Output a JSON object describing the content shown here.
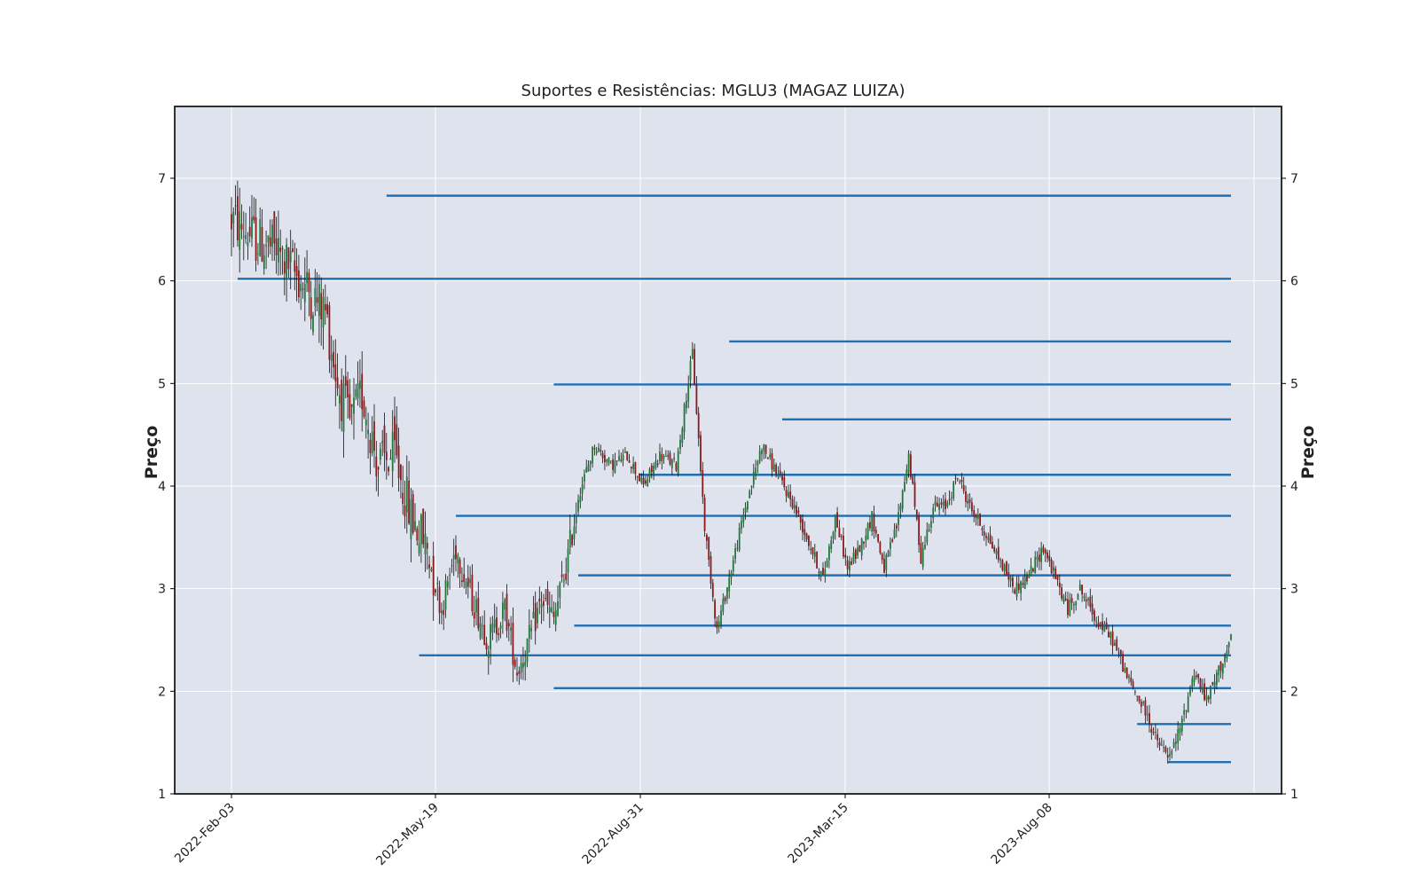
{
  "chart_data": {
    "type": "candlestick",
    "title": "Suportes e Resistências: MGLU3 (MAGAZ LUIZA)",
    "ylabel": "Preço",
    "ylabel_right": "Preço",
    "ylim": [
      1,
      7.7
    ],
    "yticks": [
      1,
      2,
      3,
      4,
      5,
      6,
      7
    ],
    "x_tick_labels": [
      "2022-Feb-03",
      "2022-May-19",
      "2022-Aug-31",
      "2023-Mar-15",
      "2023-Aug-08"
    ],
    "grid": true,
    "colors": {
      "background": "#dee3ee",
      "up": "#1f7a3a",
      "down": "#8b1a1a",
      "wick": "#111111",
      "level": "#1f6fb2",
      "grid": "#ffffff",
      "frame": "#000000"
    },
    "price_path_anchors": [
      {
        "i": 0,
        "p": 6.6
      },
      {
        "i": 12,
        "p": 6.4
      },
      {
        "i": 22,
        "p": 6.3
      },
      {
        "i": 30,
        "p": 6.1
      },
      {
        "i": 38,
        "p": 5.9
      },
      {
        "i": 46,
        "p": 5.7
      },
      {
        "i": 52,
        "p": 5.0
      },
      {
        "i": 58,
        "p": 4.6
      },
      {
        "i": 64,
        "p": 4.9
      },
      {
        "i": 72,
        "p": 4.2
      },
      {
        "i": 80,
        "p": 4.3
      },
      {
        "i": 88,
        "p": 3.7
      },
      {
        "i": 96,
        "p": 3.4
      },
      {
        "i": 103,
        "p": 2.8
      },
      {
        "i": 110,
        "p": 3.4
      },
      {
        "i": 118,
        "p": 2.9
      },
      {
        "i": 126,
        "p": 2.5
      },
      {
        "i": 134,
        "p": 2.8
      },
      {
        "i": 140,
        "p": 2.2
      },
      {
        "i": 146,
        "p": 2.5
      },
      {
        "i": 152,
        "p": 2.9
      },
      {
        "i": 158,
        "p": 2.7
      },
      {
        "i": 164,
        "p": 3.2
      },
      {
        "i": 170,
        "p": 3.9
      },
      {
        "i": 178,
        "p": 4.4
      },
      {
        "i": 186,
        "p": 4.2
      },
      {
        "i": 194,
        "p": 4.3
      },
      {
        "i": 202,
        "p": 4.0
      },
      {
        "i": 210,
        "p": 4.3
      },
      {
        "i": 218,
        "p": 4.2
      },
      {
        "i": 226,
        "p": 5.3
      },
      {
        "i": 232,
        "p": 3.6
      },
      {
        "i": 238,
        "p": 2.6
      },
      {
        "i": 244,
        "p": 3.1
      },
      {
        "i": 252,
        "p": 3.8
      },
      {
        "i": 260,
        "p": 4.4
      },
      {
        "i": 268,
        "p": 4.1
      },
      {
        "i": 276,
        "p": 3.8
      },
      {
        "i": 284,
        "p": 3.4
      },
      {
        "i": 290,
        "p": 3.1
      },
      {
        "i": 296,
        "p": 3.7
      },
      {
        "i": 302,
        "p": 3.2
      },
      {
        "i": 308,
        "p": 3.4
      },
      {
        "i": 314,
        "p": 3.7
      },
      {
        "i": 320,
        "p": 3.2
      },
      {
        "i": 326,
        "p": 3.6
      },
      {
        "i": 332,
        "p": 4.3
      },
      {
        "i": 338,
        "p": 3.3
      },
      {
        "i": 344,
        "p": 3.8
      },
      {
        "i": 350,
        "p": 3.8
      },
      {
        "i": 356,
        "p": 4.1
      },
      {
        "i": 362,
        "p": 3.8
      },
      {
        "i": 368,
        "p": 3.6
      },
      {
        "i": 376,
        "p": 3.3
      },
      {
        "i": 384,
        "p": 3.0
      },
      {
        "i": 390,
        "p": 3.1
      },
      {
        "i": 398,
        "p": 3.4
      },
      {
        "i": 404,
        "p": 3.1
      },
      {
        "i": 410,
        "p": 2.8
      },
      {
        "i": 416,
        "p": 3.0
      },
      {
        "i": 424,
        "p": 2.7
      },
      {
        "i": 432,
        "p": 2.5
      },
      {
        "i": 440,
        "p": 2.1
      },
      {
        "i": 448,
        "p": 1.8
      },
      {
        "i": 454,
        "p": 1.5
      },
      {
        "i": 460,
        "p": 1.35
      },
      {
        "i": 466,
        "p": 1.7
      },
      {
        "i": 472,
        "p": 2.2
      },
      {
        "i": 478,
        "p": 1.9
      },
      {
        "i": 484,
        "p": 2.2
      },
      {
        "i": 490,
        "p": 2.5
      }
    ],
    "support_resistance_levels": [
      {
        "price": 6.83,
        "start_index": 76
      },
      {
        "price": 6.02,
        "start_index": 3
      },
      {
        "price": 5.41,
        "start_index": 244
      },
      {
        "price": 4.99,
        "start_index": 158
      },
      {
        "price": 4.65,
        "start_index": 270
      },
      {
        "price": 4.11,
        "start_index": 200
      },
      {
        "price": 3.71,
        "start_index": 110
      },
      {
        "price": 3.13,
        "start_index": 170
      },
      {
        "price": 2.64,
        "start_index": 168
      },
      {
        "price": 2.35,
        "start_index": 92
      },
      {
        "price": 2.03,
        "start_index": 158
      },
      {
        "price": 1.68,
        "start_index": 444
      },
      {
        "price": 1.31,
        "start_index": 459
      }
    ],
    "n_bars": 491
  }
}
